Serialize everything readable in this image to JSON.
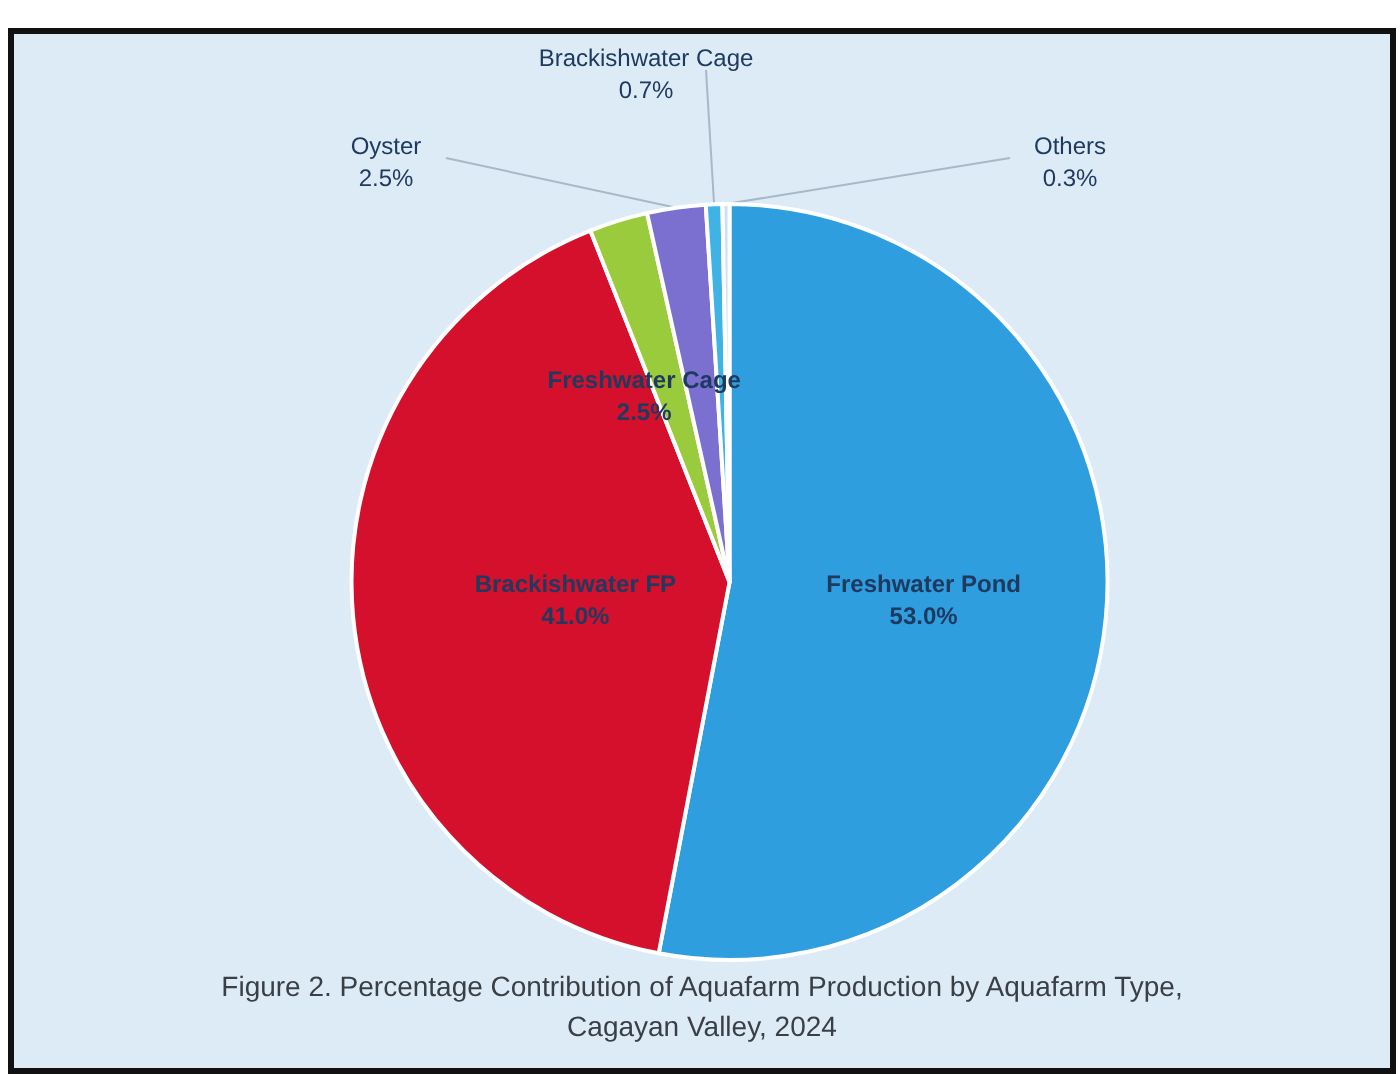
{
  "chart_data": {
    "type": "pie",
    "title": "Figure 2. Percentage Contribution of Aquafarm Production by Aquafarm Type,\nCagayan Valley, 2024",
    "categories": [
      "Freshwater Pond",
      "Brackishwater FP",
      "Freshwater Cage",
      "Oyster",
      "Brackishwater Cage",
      "Others"
    ],
    "values": [
      53.0,
      41.0,
      2.5,
      2.5,
      0.7,
      0.3
    ],
    "value_labels": [
      "53.0%",
      "41.0%",
      "2.5%",
      "2.5%",
      "0.7%",
      "0.3%"
    ],
    "colors": [
      "#2f9ede",
      "#d4102c",
      "#9acb3c",
      "#7b6fd0",
      "#3fb3e6",
      "#c8e4f4"
    ],
    "legend": false
  }
}
